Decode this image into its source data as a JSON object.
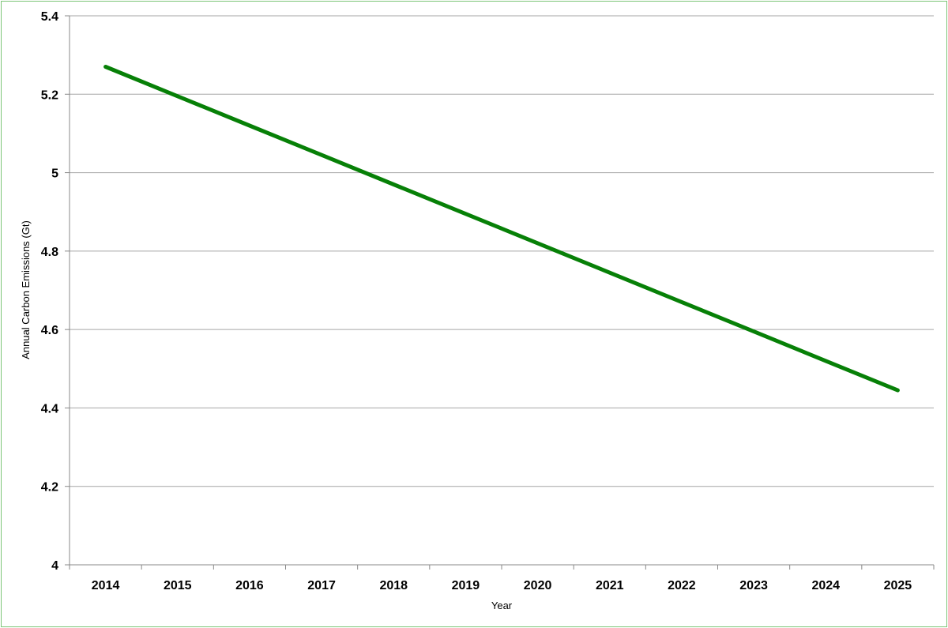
{
  "chart_data": {
    "type": "line",
    "xlabel": "Year",
    "ylabel": "Annual Carbon Emissions (Gt)",
    "categories": [
      "2014",
      "2015",
      "2016",
      "2017",
      "2018",
      "2019",
      "2020",
      "2021",
      "2022",
      "2023",
      "2024",
      "2025"
    ],
    "series": [
      {
        "values": [
          5.27,
          5.195,
          5.12,
          5.045,
          4.97,
          4.895,
          4.82,
          4.745,
          4.67,
          4.595,
          4.52,
          4.445
        ]
      }
    ],
    "ylim": [
      4,
      5.4
    ],
    "yticks": [
      4,
      4.2,
      4.4,
      4.6,
      4.8,
      5,
      5.2,
      5.4
    ],
    "ytick_labels": [
      "4",
      "4.2",
      "4.4",
      "4.6",
      "4.8",
      "5",
      "5.2",
      "5.4"
    ],
    "grid": true,
    "colors": {
      "line": "#078007",
      "grid": "#a6a6a6",
      "border": "#7cc576"
    }
  }
}
